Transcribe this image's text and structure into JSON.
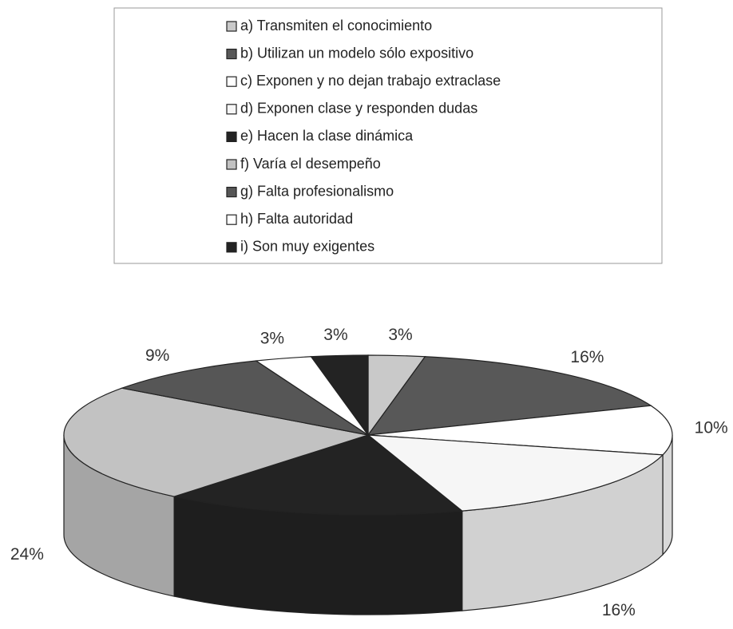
{
  "chart_data": {
    "type": "pie3d",
    "categories": [
      "a) Transmiten el conocimiento",
      "b) Utilizan un modelo sólo expositivo",
      "c) Exponen y no dejan trabajo extraclase",
      "d) Exponen clase y responden dudas",
      "e) Hacen la clase dinámica",
      "f) Varía el desempeño",
      "g) Falta profesionalismo",
      "h) Falta autoridad",
      "i) Son muy exigentes"
    ],
    "values": [
      3,
      16,
      10,
      16,
      16,
      24,
      9,
      3,
      3
    ],
    "value_labels": [
      "3%",
      "16%",
      "10%",
      "16%",
      "16%",
      "24%",
      "9%",
      "3%",
      "3%"
    ],
    "colors": [
      "#c9c9c9",
      "#585858",
      "#ffffff",
      "#f6f6f6",
      "#232323",
      "#c2c2c2",
      "#565656",
      "#ffffff",
      "#232323"
    ],
    "legend": "top"
  }
}
